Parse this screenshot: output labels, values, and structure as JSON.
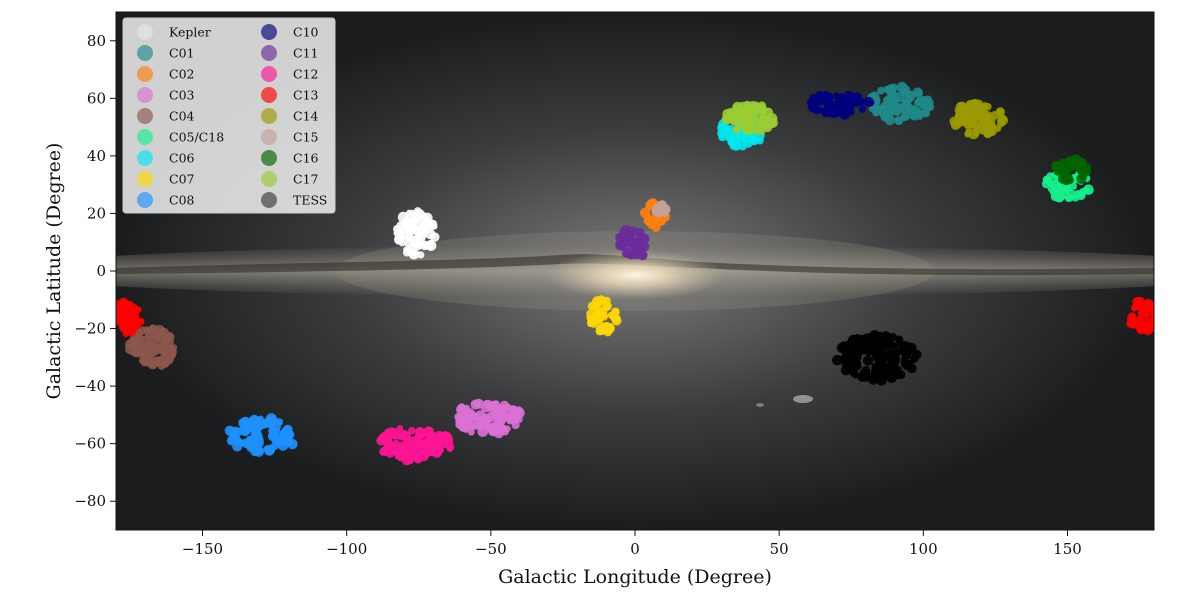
{
  "chart_data": {
    "type": "scatter",
    "xlabel": "Galactic Longitude (Degree)",
    "ylabel": "Galactic Latitude (Degree)",
    "xlim": [
      -180,
      180
    ],
    "ylim": [
      -90,
      90
    ],
    "x_ticks": [
      -150,
      -100,
      -50,
      0,
      50,
      100,
      150
    ],
    "x_tick_labels": [
      "−150",
      "−100",
      "−50",
      "0",
      "50",
      "100",
      "150"
    ],
    "y_ticks": [
      -80,
      -60,
      -40,
      -20,
      0,
      20,
      40,
      60,
      80
    ],
    "y_tick_labels": [
      "−80",
      "−60",
      "−40",
      "−20",
      "0",
      "20",
      "40",
      "60",
      "80"
    ],
    "background": "all-sky Milky Way image",
    "legend_position": "top-left",
    "series": [
      {
        "name": "Kepler",
        "color": "#ffffff",
        "legend_color": "#e6e6e6",
        "regions": [
          {
            "x": -76,
            "y": 13,
            "rx": 7,
            "ry": 8
          }
        ]
      },
      {
        "name": "C01",
        "color": "#1f8a8a",
        "regions": [
          {
            "x": 92,
            "y": 58,
            "rx": 11,
            "ry": 6
          }
        ]
      },
      {
        "name": "C02",
        "color": "#ff7f0e",
        "regions": [
          {
            "x": 7,
            "y": 19,
            "rx": 4,
            "ry": 5
          }
        ]
      },
      {
        "name": "C03",
        "color": "#da70d6",
        "regions": [
          {
            "x": -51,
            "y": -51,
            "rx": 12,
            "ry": 6
          }
        ]
      },
      {
        "name": "C04",
        "color": "#8c564b",
        "regions": [
          {
            "x": -168,
            "y": -27,
            "rx": 8,
            "ry": 7
          }
        ]
      },
      {
        "name": "C05/C18",
        "color": "#14f08c",
        "regions": [
          {
            "x": 150,
            "y": 30,
            "rx": 8,
            "ry": 5
          }
        ]
      },
      {
        "name": "C06",
        "color": "#00e8f0",
        "regions": [
          {
            "x": 37,
            "y": 48,
            "rx": 8,
            "ry": 5
          }
        ]
      },
      {
        "name": "C07",
        "color": "#ffd700",
        "regions": [
          {
            "x": -11,
            "y": -16,
            "rx": 5,
            "ry": 6
          }
        ]
      },
      {
        "name": "C08",
        "color": "#1e90ff",
        "regions": [
          {
            "x": -129,
            "y": -57,
            "rx": 12,
            "ry": 6
          }
        ]
      },
      {
        "name": "C10",
        "color": "#000080",
        "regions": [
          {
            "x": 71,
            "y": 58,
            "rx": 11,
            "ry": 4
          }
        ]
      },
      {
        "name": "C11",
        "color": "#6a2c9a",
        "regions": [
          {
            "x": -1,
            "y": 9,
            "rx": 5,
            "ry": 6
          }
        ]
      },
      {
        "name": "C12",
        "color": "#ff1493",
        "regions": [
          {
            "x": -76,
            "y": -60,
            "rx": 13,
            "ry": 6
          }
        ]
      },
      {
        "name": "C13",
        "color": "#ff0000",
        "regions": [
          {
            "x": -176,
            "y": -16,
            "rx": 5,
            "ry": 6
          },
          {
            "x": 176,
            "y": -16,
            "rx": 5,
            "ry": 6
          }
        ]
      },
      {
        "name": "C14",
        "color": "#9a9a00",
        "regions": [
          {
            "x": 119,
            "y": 53,
            "rx": 9,
            "ry": 6
          }
        ]
      },
      {
        "name": "C15",
        "color": "#c4a09a",
        "regions": [
          {
            "x": 9,
            "y": 21,
            "rx": 2,
            "ry": 2
          }
        ]
      },
      {
        "name": "C16",
        "color": "#006400",
        "regions": [
          {
            "x": 151,
            "y": 35,
            "rx": 6,
            "ry": 4
          }
        ]
      },
      {
        "name": "C17",
        "color": "#9acd32",
        "regions": [
          {
            "x": 40,
            "y": 53,
            "rx": 9,
            "ry": 5
          }
        ]
      },
      {
        "name": "TESS",
        "color": "#000000",
        "legend_color": "#3a3a3a",
        "regions": [
          {
            "x": 84,
            "y": -30,
            "rx": 14,
            "ry": 8
          }
        ]
      }
    ]
  }
}
